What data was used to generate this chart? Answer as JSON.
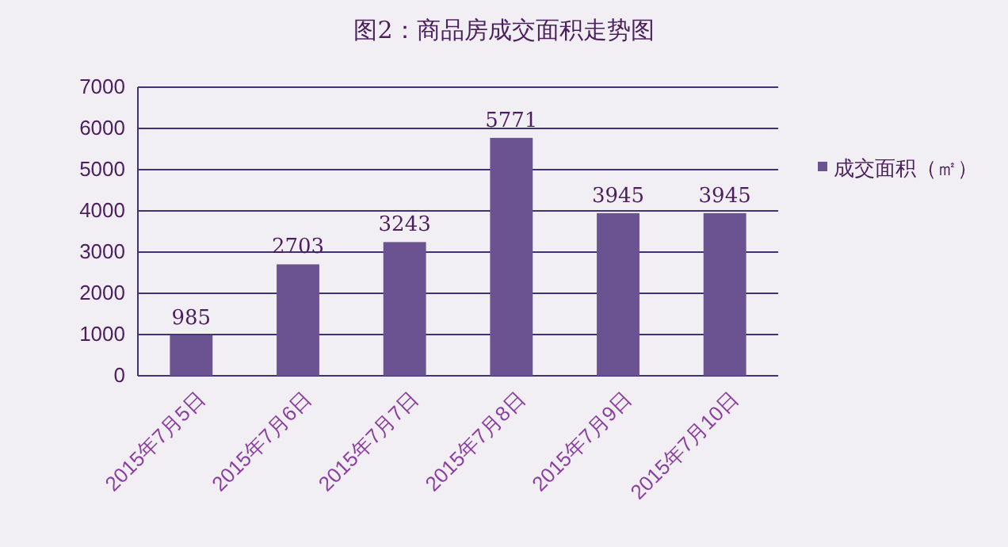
{
  "chart_data": {
    "type": "bar",
    "title": "图2：商品房成交面积走势图",
    "categories": [
      "2015年7月5日",
      "2015年7月6日",
      "2015年7月7日",
      "2015年7月8日",
      "2015年7月9日",
      "2015年7月10日"
    ],
    "series": [
      {
        "name": "成交面积（㎡）",
        "color": "#6b5290",
        "values": [
          985,
          2703,
          3243,
          5771,
          3945,
          3945
        ]
      }
    ],
    "ylim": [
      0,
      7000
    ],
    "yticks": [
      0,
      1000,
      2000,
      3000,
      4000,
      5000,
      6000,
      7000
    ],
    "grid": "y",
    "legend": "right",
    "data_labels": true
  }
}
